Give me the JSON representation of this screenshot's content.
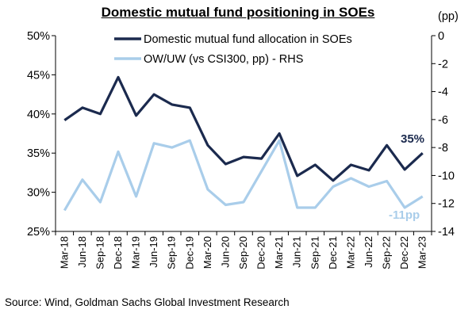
{
  "chart_data": {
    "type": "line",
    "title": "Domestic mutual fund positioning in SOEs",
    "source": "Source: Wind, Goldman Sachs Global Investment Research",
    "x": [
      "Mar-18",
      "Jun-18",
      "Sep-18",
      "Dec-18",
      "Mar-19",
      "Jun-19",
      "Sep-19",
      "Dec-19",
      "Mar-20",
      "Jun-20",
      "Sep-20",
      "Dec-20",
      "Mar-21",
      "Jun-21",
      "Sep-21",
      "Dec-21",
      "Mar-22",
      "Jun-22",
      "Sep-22",
      "Dec-22",
      "Mar-23"
    ],
    "y_left": {
      "min": 25,
      "max": 50,
      "step": 5,
      "ticks": [
        "25%",
        "30%",
        "35%",
        "40%",
        "45%",
        "50%"
      ]
    },
    "y_right": {
      "label": "(pp)",
      "min": -14,
      "max": 0,
      "step": 2,
      "ticks": [
        "-14",
        "-12",
        "-10",
        "-8",
        "-6",
        "-4",
        "-2",
        "0"
      ]
    },
    "series": [
      {
        "name": "Domestic mutual fund allocation in SOEs",
        "axis": "left",
        "color": "#1b2a4e",
        "values": [
          39.2,
          40.8,
          40.0,
          44.7,
          39.8,
          42.5,
          41.2,
          40.8,
          36.0,
          33.6,
          34.5,
          34.3,
          37.5,
          32.1,
          33.5,
          31.5,
          33.5,
          32.8,
          36.0,
          32.9,
          35.0
        ],
        "end_label": "35%"
      },
      {
        "name": "OW/UW (vs CSI300, pp) - RHS",
        "axis": "right",
        "color": "#a9cdea",
        "values": [
          -12.5,
          -10.3,
          -11.9,
          -8.3,
          -11.5,
          -7.7,
          -8.0,
          -7.5,
          -11.0,
          -12.1,
          -11.9,
          -9.7,
          -7.5,
          -12.3,
          -12.3,
          -10.8,
          -10.2,
          -10.8,
          -10.4,
          -12.3,
          -11.5
        ],
        "end_label": "-11pp"
      }
    ]
  }
}
